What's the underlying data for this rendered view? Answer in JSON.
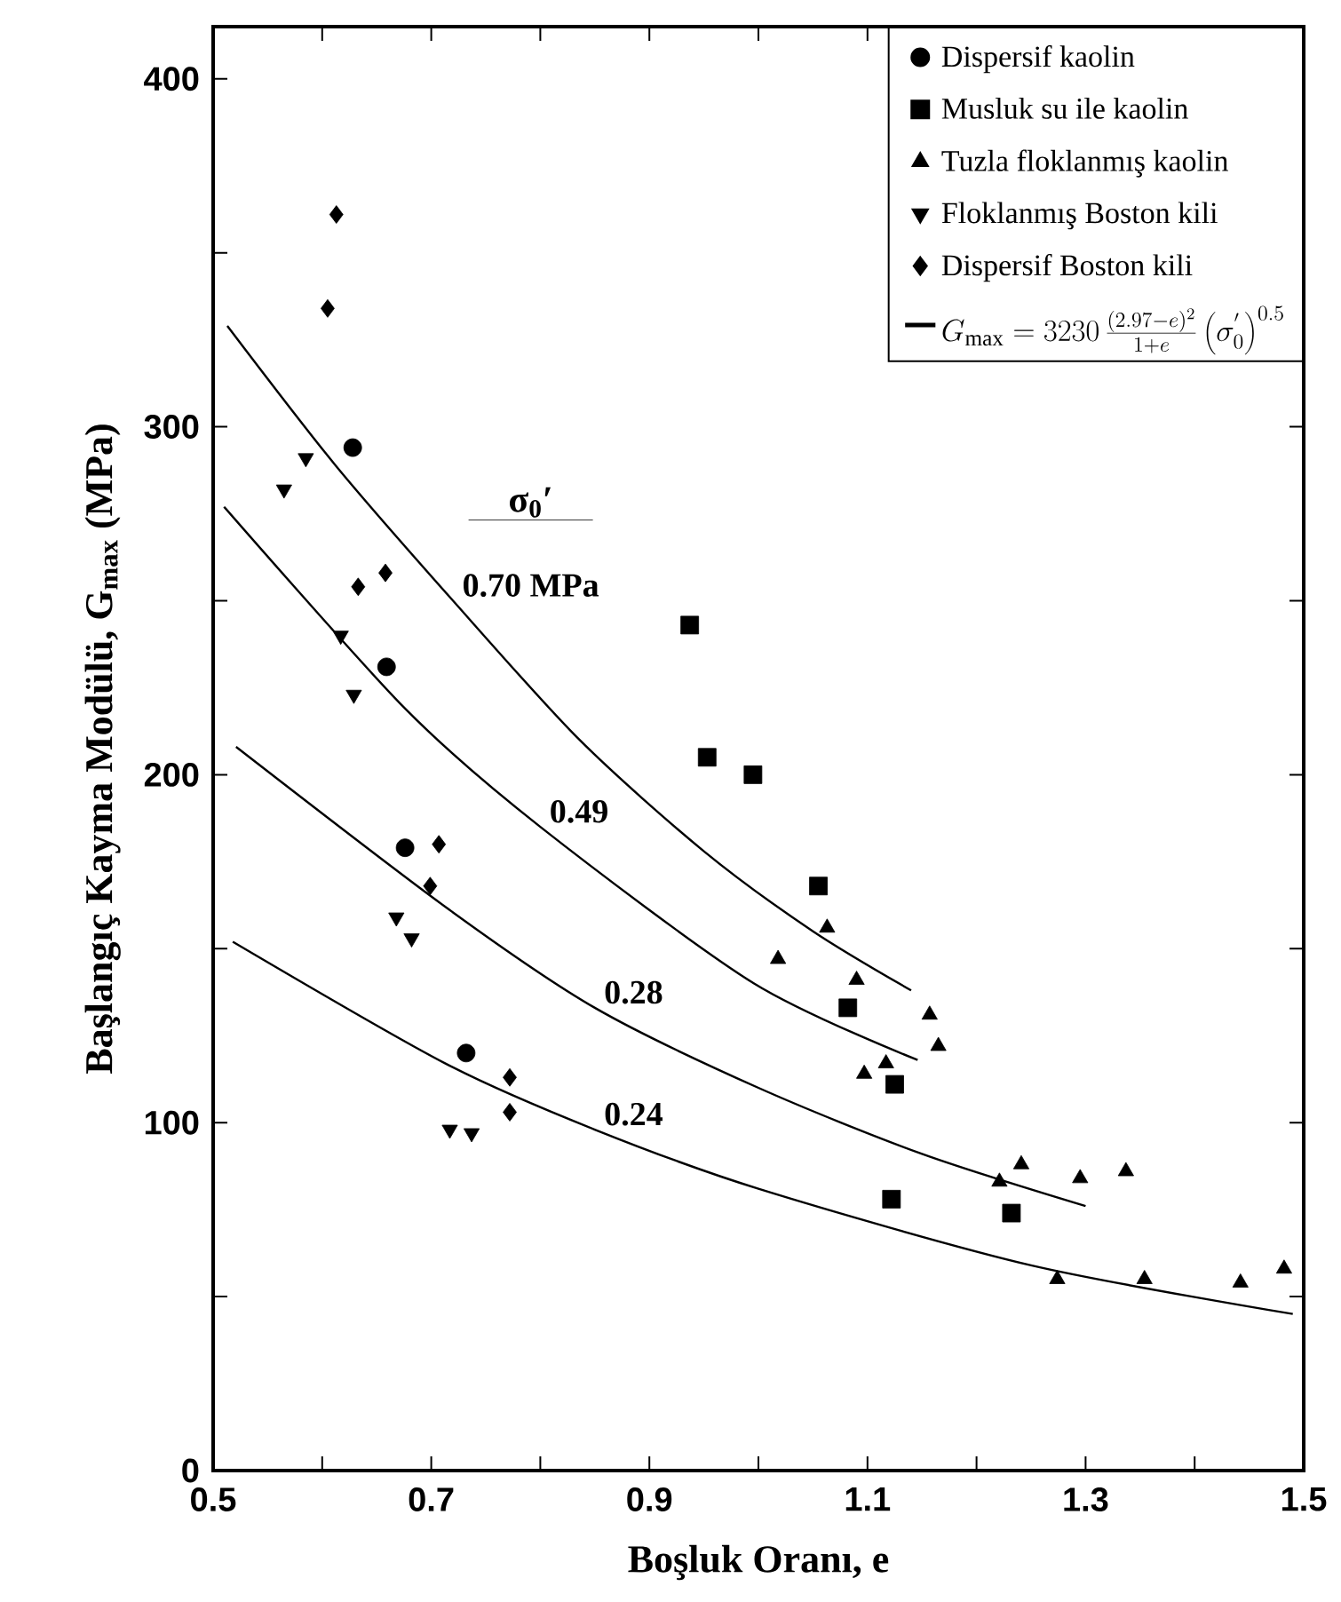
{
  "chart_data": {
    "type": "scatter",
    "xlabel": "Boşluk Oranı, e",
    "ylabel": "Başlangıç Kayma Modülü, G$_{max}$ (MPa)",
    "xlim": [
      0.5,
      1.5
    ],
    "ylim": [
      0,
      415
    ],
    "xticks": [
      0.5,
      {
        "value": 0.6,
        "label": null
      },
      0.7,
      {
        "value": 0.8,
        "label": null
      },
      0.9,
      {
        "value": 1.0,
        "label": null
      },
      1.1,
      {
        "value": 1.2,
        "label": null
      },
      1.3,
      {
        "value": 1.4,
        "label": null
      },
      1.5
    ],
    "yticks": [
      0,
      {
        "value": 50,
        "label": null
      },
      100,
      {
        "value": 150,
        "label": null
      },
      200,
      {
        "value": 250,
        "label": null
      },
      300,
      {
        "value": 350,
        "label": null
      },
      400
    ],
    "legend": "top right",
    "annotations": [
      "σ$_{0}$′",
      "G_{\\mathrm{max}} = 3230\\,\\frac{(2.97-e)^{2}}{1+e}\\left(\\sigma_{0}^{'}\\right)^{0.5}"
    ],
    "series": [
      {
        "name": "Dispersif kaolin",
        "marker": "circle",
        "color": "#000000",
        "x": [
          0.628,
          0.659,
          0.676,
          0.732
        ],
        "values": [
          294,
          231,
          179,
          120
        ]
      },
      {
        "name": "Musluk su ile kaolin",
        "marker": "square",
        "color": "#000000",
        "x": [
          0.937,
          0.953,
          0.995,
          1.055,
          1.082,
          1.125,
          1.122,
          1.232
        ],
        "values": [
          243,
          205,
          200,
          168,
          133,
          111,
          78,
          74
        ]
      },
      {
        "name": "Tuzla floklanmış kaolin",
        "marker": "triangle",
        "color": "#000000",
        "x": [
          1.063,
          1.018,
          1.09,
          1.157,
          1.165,
          1.097,
          1.117,
          1.221,
          1.241,
          1.295,
          1.337,
          1.274,
          1.354,
          1.442,
          1.482
        ],
        "values": [
          156,
          147,
          141,
          131,
          122,
          114,
          117,
          83,
          88,
          84,
          86,
          55,
          55,
          54,
          58
        ]
      },
      {
        "name": "Floklanmış Boston kili",
        "marker": "triangle-down",
        "color": "#000000",
        "x": [
          0.585,
          0.565,
          0.617,
          0.629,
          0.668,
          0.682,
          0.717,
          0.737
        ],
        "values": [
          291,
          282,
          240,
          223,
          159,
          153,
          98,
          97
        ]
      },
      {
        "name": "Dispersif Boston kili",
        "marker": "diamond",
        "color": "#000000",
        "x": [
          0.613,
          0.605,
          0.633,
          0.658,
          0.707,
          0.699,
          0.772,
          0.772
        ],
        "values": [
          361,
          334,
          254,
          258,
          180,
          168,
          113,
          103
        ]
      },
      {
        "name": "**0.70** MPa",
        "type": "line",
        "color": "#000000",
        "x": [
          0.513,
          0.612,
          0.72,
          0.836,
          0.95,
          1.05,
          1.14
        ],
        "values": [
          329,
          289,
          250,
          210,
          178,
          155,
          138
        ]
      },
      {
        "name": "0.49",
        "type": "line",
        "color": "#000000",
        "x": [
          0.51,
          0.676,
          0.8,
          0.996,
          1.146
        ],
        "values": [
          277,
          219,
          185,
          140,
          118
        ]
      },
      {
        "name": "0.28",
        "type": "line",
        "color": "#000000",
        "x": [
          0.521,
          0.713,
          0.85,
          1.0,
          1.15,
          1.3
        ],
        "values": [
          208,
          162,
          133,
          110,
          91,
          76
        ]
      },
      {
        "name": "0.24",
        "type": "line",
        "color": "#000000",
        "x": [
          0.518,
          0.713,
          0.85,
          1.0,
          1.25,
          1.49
        ],
        "values": [
          152,
          117,
          98,
          81,
          59,
          45
        ]
      }
    ]
  }
}
